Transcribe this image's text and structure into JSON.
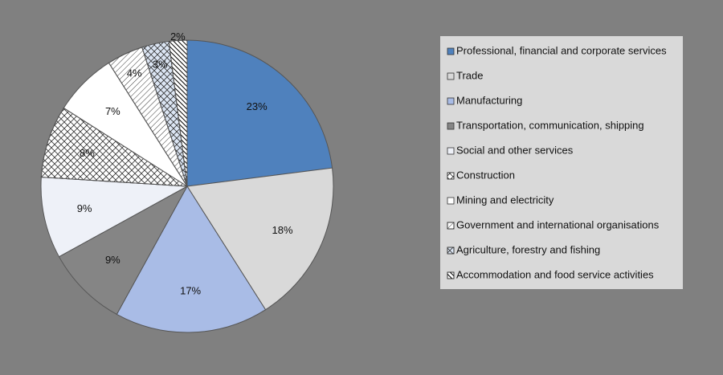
{
  "chart_data": {
    "type": "pie",
    "categories": [
      "Professional, financial and corporate services",
      "Trade",
      "Manufacturing",
      "Transportation, communication, shipping",
      "Social and other services",
      "Construction",
      "Mining and electricity",
      "Government and international organisations",
      "Agriculture, forestry and fishing",
      "Accommodation and food service activities"
    ],
    "values": [
      23,
      18,
      17,
      9,
      9,
      8,
      7,
      4,
      3,
      2
    ],
    "value_labels": [
      "23%",
      "18%",
      "17%",
      "9%",
      "9%",
      "8%",
      "7%",
      "4%",
      "3%",
      "2%"
    ],
    "colors": [
      "#4f81bd",
      "#d9d9d9",
      "#a9bce6",
      "#858585",
      "#eef1f8",
      "#ffffff",
      "#ffffff",
      "#ffffff",
      "#dce6f4",
      "#ffffff"
    ],
    "patterns": [
      "solid",
      "solid",
      "solid",
      "solid",
      "solid",
      "crosshatch",
      "solid",
      "hatch",
      "crosshatch",
      "dense-hatch"
    ],
    "legend": "right"
  }
}
